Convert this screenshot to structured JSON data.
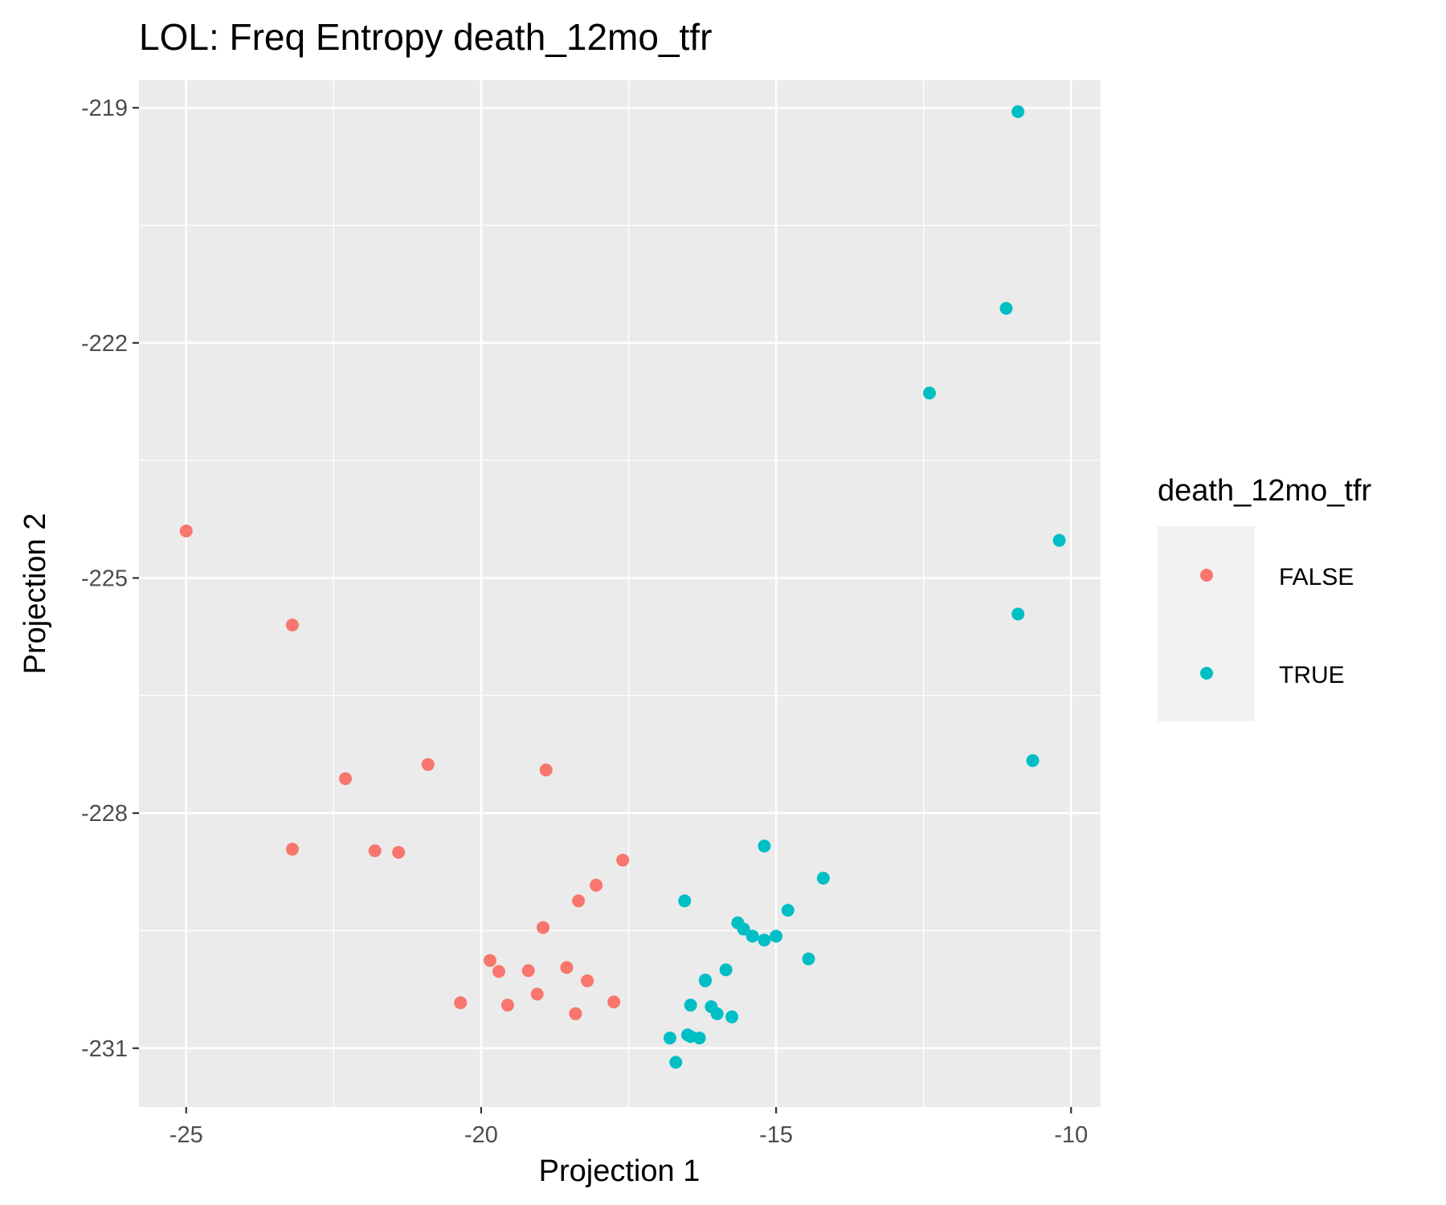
{
  "chart_data": {
    "type": "scatter",
    "title": "LOL: Freq Entropy death_12mo_tfr",
    "xlabel": "Projection 1",
    "ylabel": "Projection 2",
    "xlim": [
      -25.8,
      -9.5
    ],
    "ylim": [
      -231.75,
      -218.65
    ],
    "x_ticks": [
      -25,
      -20,
      -15,
      -10
    ],
    "y_ticks": [
      -219,
      -222,
      -225,
      -228,
      -231
    ],
    "x_tick_labels": [
      "-25",
      "-20",
      "-15",
      "-10"
    ],
    "y_tick_labels": [
      "-219",
      "-222",
      "-225",
      "-228",
      "-231"
    ],
    "grid": true,
    "legend": {
      "title": "death_12mo_tfr",
      "position": "right",
      "entries": [
        "FALSE",
        "TRUE"
      ]
    },
    "colors": {
      "FALSE": "#F8766D",
      "TRUE": "#00BFC4",
      "panel": "#EBEBEB",
      "grid": "#FFFFFF"
    },
    "series": [
      {
        "name": "FALSE",
        "points": [
          [
            -25.0,
            -224.4
          ],
          [
            -23.2,
            -225.6
          ],
          [
            -22.3,
            -227.56
          ],
          [
            -20.9,
            -227.38
          ],
          [
            -18.9,
            -227.45
          ],
          [
            -23.2,
            -228.46
          ],
          [
            -21.8,
            -228.48
          ],
          [
            -21.4,
            -228.5
          ],
          [
            -17.6,
            -228.6
          ],
          [
            -18.05,
            -228.92
          ],
          [
            -18.35,
            -229.12
          ],
          [
            -18.95,
            -229.46
          ],
          [
            -19.85,
            -229.88
          ],
          [
            -19.7,
            -230.02
          ],
          [
            -19.2,
            -230.01
          ],
          [
            -18.55,
            -229.97
          ],
          [
            -18.2,
            -230.14
          ],
          [
            -19.05,
            -230.31
          ],
          [
            -19.55,
            -230.45
          ],
          [
            -20.35,
            -230.42
          ],
          [
            -17.75,
            -230.41
          ],
          [
            -18.4,
            -230.56
          ]
        ]
      },
      {
        "name": "TRUE",
        "points": [
          [
            -10.9,
            -219.05
          ],
          [
            -11.1,
            -221.56
          ],
          [
            -12.4,
            -222.64
          ],
          [
            -10.2,
            -224.52
          ],
          [
            -10.9,
            -225.46
          ],
          [
            -10.65,
            -227.33
          ],
          [
            -15.2,
            -228.42
          ],
          [
            -14.2,
            -228.83
          ],
          [
            -16.55,
            -229.12
          ],
          [
            -14.8,
            -229.24
          ],
          [
            -15.65,
            -229.4
          ],
          [
            -15.55,
            -229.48
          ],
          [
            -15.4,
            -229.57
          ],
          [
            -15.2,
            -229.62
          ],
          [
            -15.0,
            -229.57
          ],
          [
            -14.45,
            -229.86
          ],
          [
            -15.85,
            -230.0
          ],
          [
            -16.2,
            -230.13
          ],
          [
            -16.2,
            -230.14
          ],
          [
            -16.45,
            -230.45
          ],
          [
            -16.1,
            -230.47
          ],
          [
            -16.0,
            -230.56
          ],
          [
            -15.75,
            -230.6
          ],
          [
            -16.8,
            -230.87
          ],
          [
            -16.5,
            -230.83
          ],
          [
            -16.45,
            -230.85
          ],
          [
            -16.3,
            -230.87
          ],
          [
            -16.7,
            -231.18
          ]
        ]
      }
    ]
  }
}
